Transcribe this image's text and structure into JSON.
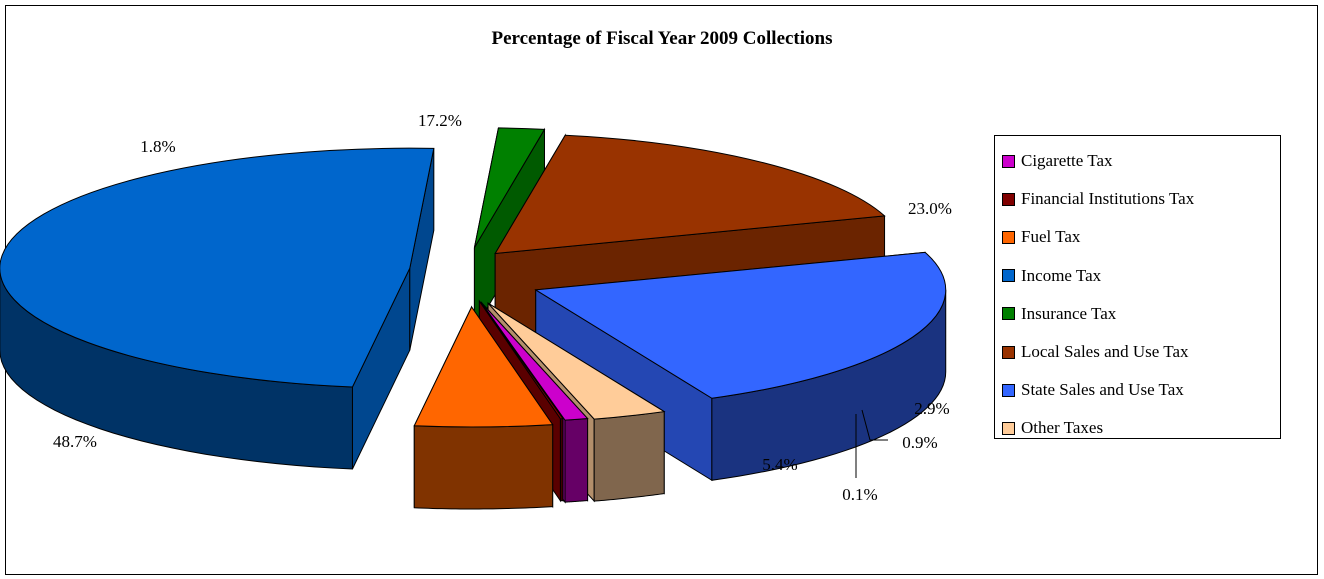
{
  "chart_data": {
    "type": "pie",
    "title": "Percentage of Fiscal Year 2009 Collections",
    "legend_position": "right",
    "three_d": true,
    "exploded": true,
    "slices": [
      {
        "name": "Cigarette Tax",
        "value": 0.9,
        "label": "0.9%",
        "color": "#cc00cc"
      },
      {
        "name": "Financial Institutions Tax",
        "value": 0.1,
        "label": "0.1%",
        "color": "#800000"
      },
      {
        "name": "Fuel Tax",
        "value": 5.4,
        "label": "5.4%",
        "color": "#ff6600"
      },
      {
        "name": "Income Tax",
        "value": 48.7,
        "label": "48.7%",
        "color": "#0066cc"
      },
      {
        "name": "Insurance Tax",
        "value": 1.8,
        "label": "1.8%",
        "color": "#008000"
      },
      {
        "name": "Local Sales and Use Tax",
        "value": 17.2,
        "label": "17.2%",
        "color": "#993300"
      },
      {
        "name": "State Sales and Use Tax",
        "value": 23.0,
        "label": "23.0%",
        "color": "#3366ff"
      },
      {
        "name": "Other Taxes",
        "value": 2.9,
        "label": "2.9%",
        "color": "#ffcc99"
      }
    ]
  }
}
